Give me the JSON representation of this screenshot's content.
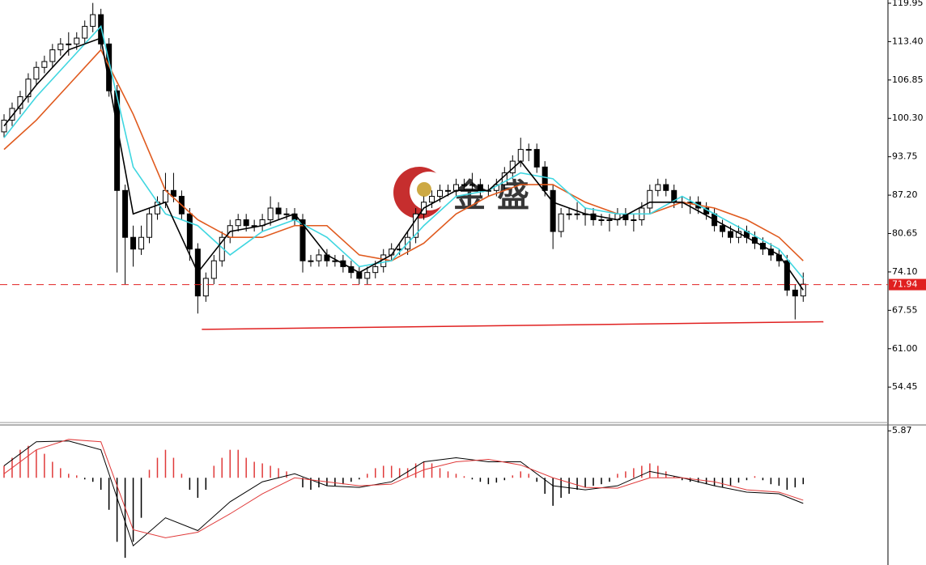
{
  "chart_data": {
    "type": "candlestick",
    "xlim": [
      0,
      110
    ],
    "ylim": [
      48.4,
      120.5
    ],
    "yticks": [
      119.95,
      {
        "value": 113.4,
        "label": "113.40"
      },
      106.85,
      {
        "value": 100.3,
        "label": "100.30"
      },
      93.75,
      {
        "value": 87.2,
        "label": "87.20"
      },
      80.65,
      {
        "value": 74.1,
        "label": "74.10"
      },
      67.55,
      {
        "value": 61.0,
        "label": "61.00"
      },
      54.45
    ],
    "candles": [
      [
        98,
        101,
        97,
        100
      ],
      [
        100,
        103,
        99,
        102
      ],
      [
        102,
        105,
        101,
        104
      ],
      [
        104,
        108,
        103,
        107
      ],
      [
        107,
        110,
        106,
        109
      ],
      [
        109,
        111,
        108,
        110
      ],
      [
        110,
        113,
        109,
        112
      ],
      [
        112,
        114,
        111,
        113
      ],
      [
        113,
        115,
        111,
        113
      ],
      [
        113,
        115,
        112,
        114
      ],
      [
        114,
        117,
        113,
        116
      ],
      [
        116,
        120,
        115,
        118
      ],
      [
        118,
        119,
        112,
        113
      ],
      [
        113,
        114,
        104,
        105
      ],
      [
        105,
        106,
        74,
        88
      ],
      [
        88,
        89,
        72,
        80
      ],
      [
        80,
        82,
        75,
        78
      ],
      [
        78,
        82,
        77,
        80
      ],
      [
        80,
        85,
        79,
        84
      ],
      [
        84,
        87,
        83,
        86
      ],
      [
        86,
        91,
        85,
        88
      ],
      [
        88,
        91,
        86,
        87
      ],
      [
        87,
        88,
        83,
        84
      ],
      [
        84,
        85,
        76,
        78
      ],
      [
        78,
        79,
        67,
        70
      ],
      [
        70,
        74,
        69,
        73
      ],
      [
        73,
        77,
        72,
        76
      ],
      [
        76,
        81,
        75,
        80
      ],
      [
        80,
        83,
        79,
        82
      ],
      [
        82,
        84,
        81,
        83
      ],
      [
        83,
        84,
        81,
        82
      ],
      [
        82,
        83,
        81,
        82
      ],
      [
        82,
        84,
        81,
        83
      ],
      [
        83,
        87,
        82,
        85
      ],
      [
        85,
        86,
        83,
        84
      ],
      [
        84,
        85,
        83,
        84
      ],
      [
        84,
        85,
        82,
        83
      ],
      [
        83,
        84,
        74,
        76
      ],
      [
        76,
        77,
        75,
        76
      ],
      [
        76,
        78,
        75,
        77
      ],
      [
        77,
        78,
        75,
        76
      ],
      [
        76,
        77,
        75,
        76
      ],
      [
        76,
        77,
        74,
        75
      ],
      [
        75,
        76,
        73,
        74
      ],
      [
        74,
        75,
        72,
        73
      ],
      [
        73,
        75,
        72,
        74
      ],
      [
        74,
        76,
        73,
        75
      ],
      [
        75,
        78,
        74,
        77
      ],
      [
        77,
        79,
        76,
        78
      ],
      [
        78,
        79,
        77,
        78
      ],
      [
        78,
        81,
        77,
        80
      ],
      [
        80,
        85,
        79,
        84
      ],
      [
        84,
        87,
        83,
        86
      ],
      [
        86,
        88,
        85,
        87
      ],
      [
        87,
        89,
        86,
        88
      ],
      [
        88,
        89,
        87,
        88
      ],
      [
        88,
        90,
        87,
        89
      ],
      [
        89,
        90,
        88,
        89
      ],
      [
        89,
        91,
        88,
        89
      ],
      [
        89,
        90,
        87,
        88
      ],
      [
        88,
        89,
        87,
        88
      ],
      [
        88,
        90,
        87,
        89
      ],
      [
        89,
        92,
        88,
        91
      ],
      [
        91,
        94,
        90,
        93
      ],
      [
        93,
        97,
        92,
        95
      ],
      [
        95,
        96,
        93,
        95
      ],
      [
        95,
        96,
        91,
        92
      ],
      [
        92,
        93,
        87,
        88
      ],
      [
        88,
        89,
        78,
        81
      ],
      [
        81,
        85,
        80,
        84
      ],
      [
        84,
        85,
        83,
        84
      ],
      [
        84,
        86,
        83,
        84
      ],
      [
        84,
        85,
        82,
        84
      ],
      [
        84,
        85,
        82,
        83
      ],
      [
        83,
        84,
        82,
        83
      ],
      [
        83,
        84,
        81,
        83
      ],
      [
        83,
        85,
        82,
        84
      ],
      [
        84,
        85,
        82,
        83
      ],
      [
        83,
        84,
        81,
        83
      ],
      [
        83,
        86,
        82,
        85
      ],
      [
        85,
        89,
        84,
        88
      ],
      [
        88,
        90,
        87,
        89
      ],
      [
        89,
        90,
        87,
        88
      ],
      [
        88,
        89,
        85,
        86
      ],
      [
        86,
        87,
        85,
        86
      ],
      [
        86,
        87,
        84,
        86
      ],
      [
        86,
        87,
        84,
        85
      ],
      [
        85,
        86,
        83,
        84
      ],
      [
        84,
        85,
        81,
        82
      ],
      [
        82,
        83,
        80,
        81
      ],
      [
        81,
        82,
        79,
        80
      ],
      [
        80,
        82,
        79,
        81
      ],
      [
        81,
        82,
        79,
        80
      ],
      [
        80,
        81,
        78,
        79
      ],
      [
        79,
        80,
        77,
        78
      ],
      [
        78,
        79,
        76,
        77
      ],
      [
        77,
        78,
        75,
        76
      ],
      [
        76,
        77,
        70,
        71
      ],
      [
        71,
        72,
        66,
        70
      ],
      [
        70,
        74,
        69,
        72
      ]
    ],
    "ma_x": [
      0,
      4,
      8,
      12,
      16,
      20,
      24,
      28,
      32,
      36,
      40,
      44,
      48,
      52,
      56,
      60,
      64,
      68,
      72,
      76,
      80,
      84,
      88,
      92,
      96,
      99
    ],
    "moving_averages": [
      {
        "color": "#e05a1e",
        "values": [
          95,
          100,
          106,
          112,
          101,
          88,
          83,
          80,
          80,
          82,
          82,
          77,
          76,
          79,
          84,
          87,
          89,
          89,
          86,
          84,
          84,
          86,
          85,
          83,
          80,
          76
        ]
      },
      {
        "color": "#3fd6e0",
        "values": [
          97,
          104,
          110,
          116,
          92,
          84,
          82,
          77,
          81,
          83,
          80,
          75,
          76,
          82,
          87,
          88,
          91,
          90,
          85,
          84,
          84,
          87,
          84,
          81,
          78,
          73
        ]
      },
      {
        "color": "#000000",
        "values": [
          99,
          106,
          112,
          114,
          84,
          86,
          74,
          81,
          82,
          84,
          77,
          74,
          77,
          85,
          88,
          88,
          93,
          86,
          84,
          83,
          86,
          86,
          83,
          80,
          77,
          71
        ]
      }
    ],
    "support": {
      "color": "#e02020",
      "x": [
        24.5,
        101.5
      ],
      "values": [
        64.3,
        65.6
      ]
    },
    "last_price": 71.94,
    "last_price_color": "#e02020",
    "logo_text": "金盛",
    "macd": {
      "ylim": [
        -10.9,
        6.4
      ],
      "yticks": [
        5.87
      ],
      "positive_color": "#e03a3a",
      "negative_color": "#000000",
      "histogram": [
        1.5,
        2.5,
        3.5,
        4,
        3.5,
        3,
        2,
        1.2,
        0.5,
        0.3,
        -0.2,
        -0.5,
        -1.5,
        -4,
        -8,
        -10,
        -8,
        -5,
        1,
        2.5,
        3.5,
        2.5,
        0.5,
        -1.5,
        -2.5,
        -1.5,
        1.5,
        2.5,
        3.5,
        3.5,
        2.5,
        2,
        1.8,
        1.5,
        1.2,
        0.8,
        0,
        -1.2,
        -1.5,
        -1.2,
        -1,
        -1,
        -0.8,
        -0.5,
        -0.2,
        0.5,
        1.2,
        1.5,
        1.5,
        1.2,
        1.2,
        1.8,
        2,
        1.8,
        1.2,
        0.8,
        0.5,
        0.2,
        -0.2,
        -0.5,
        -0.8,
        -0.6,
        -0.3,
        0.3,
        0.8,
        0.5,
        -0.5,
        -2,
        -3.5,
        -2.5,
        -2,
        -1.5,
        -1.2,
        -1,
        -0.8,
        -0.5,
        0.5,
        0.8,
        1.2,
        1.5,
        1.8,
        1.5,
        0.8,
        0.2,
        -0.3,
        -0.5,
        -0.6,
        -0.8,
        -1,
        -1.2,
        -1,
        -0.6,
        -0.3,
        0.2,
        -0.3,
        -0.8,
        -1,
        -1.5,
        -1.2,
        -0.8
      ],
      "line_x": [
        0,
        4,
        8,
        12,
        16,
        20,
        24,
        28,
        32,
        36,
        40,
        44,
        48,
        52,
        56,
        60,
        64,
        68,
        72,
        76,
        80,
        84,
        88,
        92,
        96,
        99
      ],
      "lines": [
        {
          "color": "#000000",
          "values": [
            1.5,
            4.5,
            4.6,
            3.5,
            -8.5,
            -5,
            -6.6,
            -3,
            -0.5,
            0.5,
            -1,
            -1.2,
            -0.5,
            2,
            2.5,
            2,
            2,
            -1,
            -1.5,
            -1,
            0.8,
            0,
            -1,
            -1.8,
            -2,
            -3.2
          ]
        },
        {
          "color": "#e03a3a",
          "values": [
            0.5,
            3.5,
            4.8,
            4.5,
            -6.5,
            -7.5,
            -6.8,
            -4.5,
            -2,
            0,
            -0.5,
            -1,
            -0.8,
            1,
            2,
            2.3,
            1.6,
            0,
            -1.2,
            -1.3,
            0,
            0,
            -0.5,
            -1.5,
            -1.8,
            -2.8
          ]
        }
      ]
    }
  }
}
